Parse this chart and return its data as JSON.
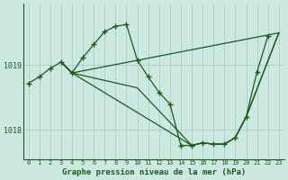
{
  "title": "Graphe pression niveau de la mer (hPa)",
  "background_color": "#cce8e0",
  "line_color": "#1a5c1a",
  "grid_color": "#aad0c4",
  "xlim": [
    -0.5,
    23.5
  ],
  "ylim": [
    1017.55,
    1019.95
  ],
  "yticks": [
    1018,
    1019
  ],
  "xticks": [
    0,
    1,
    2,
    3,
    4,
    5,
    6,
    7,
    8,
    9,
    10,
    11,
    12,
    13,
    14,
    15,
    16,
    17,
    18,
    19,
    20,
    21,
    22,
    23
  ],
  "series": [
    {
      "x": [
        0,
        1,
        2,
        3,
        4,
        5,
        6,
        7,
        8,
        9,
        10,
        11,
        12,
        13,
        14,
        15,
        16,
        17,
        18,
        19,
        20,
        21,
        22,
        23
      ],
      "y": [
        1018.72,
        1018.82,
        1018.95,
        1019.05,
        1018.88,
        1019.12,
        1019.32,
        1019.52,
        1019.6,
        1019.62,
        1019.08,
        1018.82,
        1018.58,
        1018.42,
        1017.76,
        1017.76,
        1017.8,
        1017.78,
        1017.78,
        1017.88,
        1018.15,
        1018.9,
        1019.45,
        null
      ],
      "has_markers": true
    },
    {
      "x": [
        3,
        4,
        23
      ],
      "y": [
        1019.05,
        1018.88,
        1019.45
      ],
      "has_markers": false
    },
    {
      "x": [
        3,
        4,
        15,
        16,
        17,
        18,
        19,
        20,
        23
      ],
      "y": [
        1019.05,
        1018.88,
        1017.76,
        1017.8,
        1017.78,
        1017.78,
        1017.88,
        1018.15,
        1019.45
      ],
      "has_markers": false
    },
    {
      "x": [
        3,
        4,
        15,
        19,
        20,
        23
      ],
      "y": [
        1019.05,
        1018.88,
        1017.76,
        1017.88,
        1018.15,
        1019.45
      ],
      "has_markers": false
    }
  ]
}
